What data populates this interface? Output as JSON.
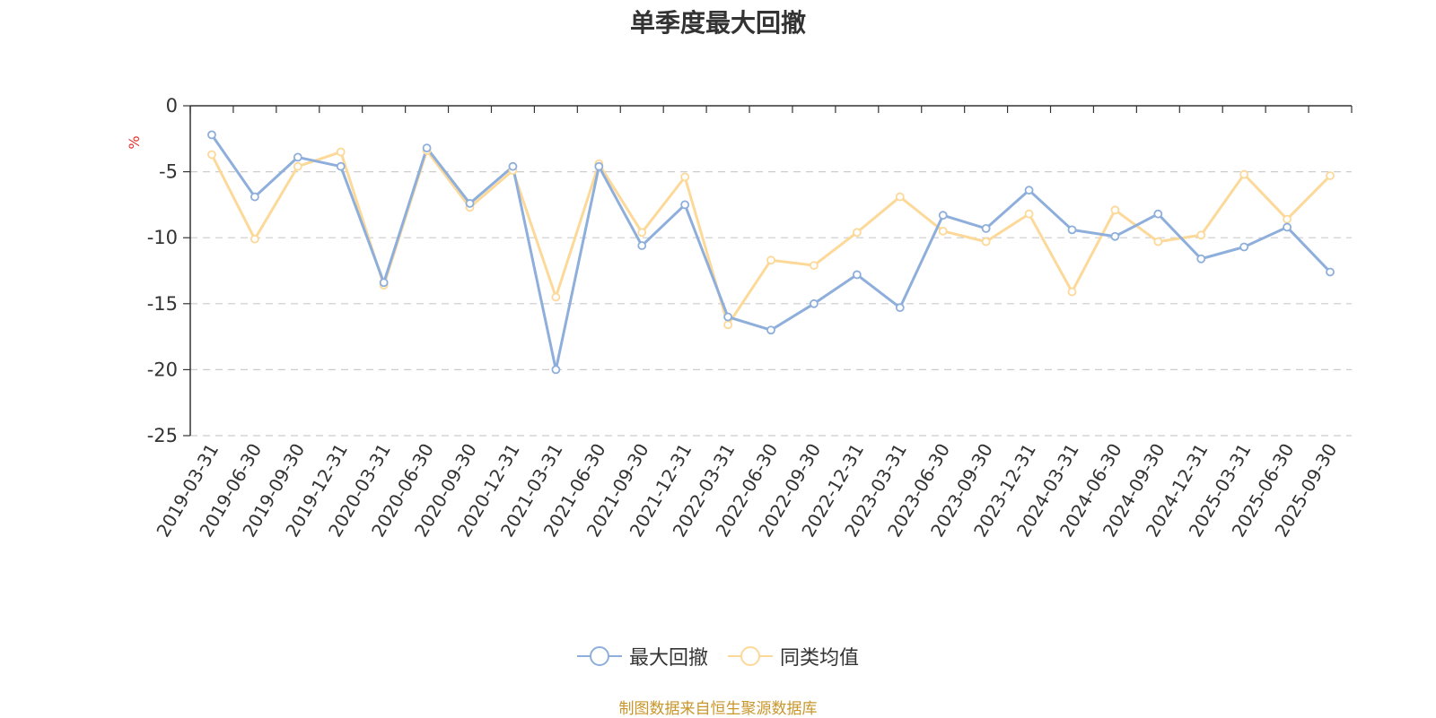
{
  "title": "单季度最大回撤",
  "source_text": "制图数据来自恒生聚源数据库",
  "colors": {
    "series1": "#8eaedb",
    "series2": "#fcd999",
    "unit": "#e8312f",
    "axis": "#333333",
    "grid": "#cccccc",
    "source": "#c9962b"
  },
  "chart_data": {
    "type": "line",
    "title": "单季度最大回撤",
    "xlabel": "",
    "ylabel": "%",
    "ylim": [
      -25,
      0
    ],
    "yticks": [
      0,
      -5,
      -10,
      -15,
      -20,
      -25
    ],
    "grid": "horizontal dashed",
    "legend_position": "bottom-center",
    "categories": [
      "2019-03-31",
      "2019-06-30",
      "2019-09-30",
      "2019-12-31",
      "2020-03-31",
      "2020-06-30",
      "2020-09-30",
      "2020-12-31",
      "2021-03-31",
      "2021-06-30",
      "2021-09-30",
      "2021-12-31",
      "2022-03-31",
      "2022-06-30",
      "2022-09-30",
      "2022-12-31",
      "2023-03-31",
      "2023-06-30",
      "2023-09-30",
      "2023-12-31",
      "2024-03-31",
      "2024-06-30",
      "2024-09-30",
      "2024-12-31",
      "2025-03-31",
      "2025-06-30",
      "2025-09-30"
    ],
    "series": [
      {
        "name": "最大回撤",
        "values": [
          -2.2,
          -6.9,
          -3.9,
          -4.6,
          -13.4,
          -3.2,
          -7.4,
          -4.6,
          -20.0,
          -4.6,
          -10.6,
          -7.5,
          -16.0,
          -17.0,
          -15.0,
          -12.8,
          -15.3,
          -8.3,
          -9.3,
          -6.4,
          -9.4,
          -9.9,
          -8.2,
          -11.6,
          -10.7,
          -9.2,
          -12.6
        ]
      },
      {
        "name": "同类均值",
        "values": [
          -3.7,
          -10.1,
          -4.6,
          -3.5,
          -13.6,
          -3.4,
          -7.7,
          -4.9,
          -14.5,
          -4.4,
          -9.6,
          -5.4,
          -16.6,
          -11.7,
          -12.1,
          -9.6,
          -6.9,
          -9.5,
          -10.3,
          -8.2,
          -14.1,
          -7.9,
          -10.3,
          -9.8,
          -5.2,
          -8.6,
          -5.3
        ]
      }
    ]
  }
}
